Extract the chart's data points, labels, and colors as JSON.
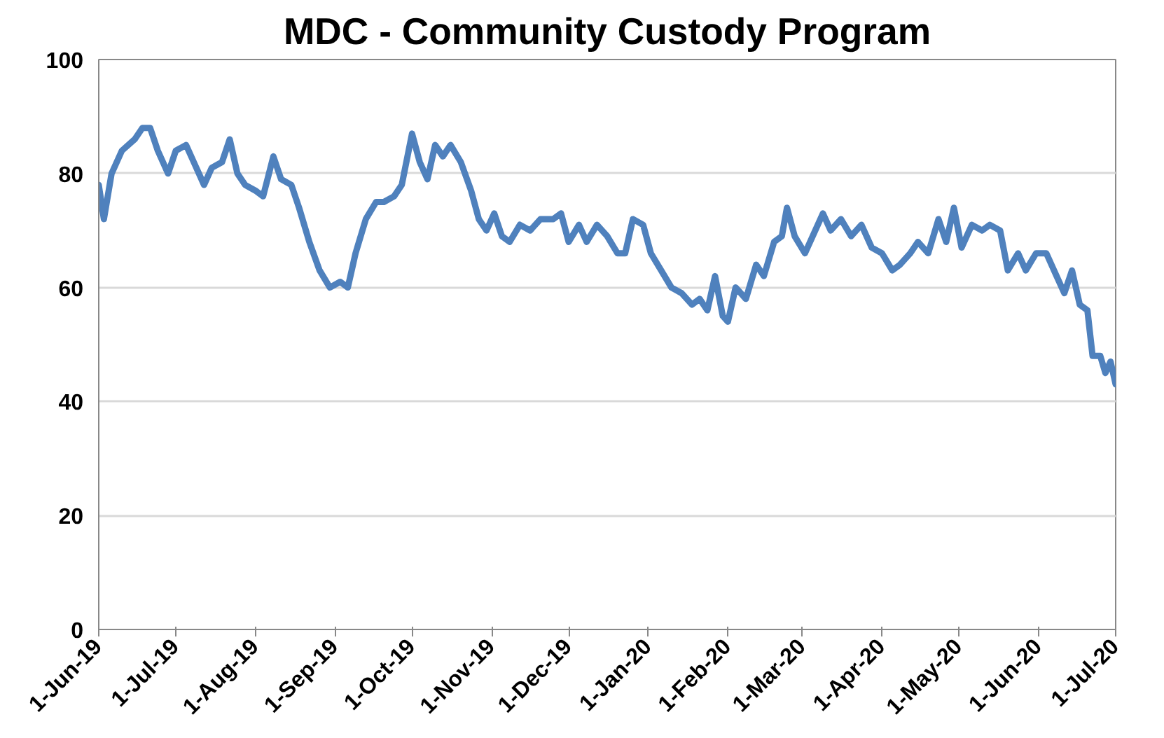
{
  "chart_data": {
    "type": "line",
    "title": "MDC - Community Custody Program",
    "x": [
      "2019-06-01",
      "2019-06-03",
      "2019-06-06",
      "2019-06-10",
      "2019-06-15",
      "2019-06-18",
      "2019-06-21",
      "2019-06-24",
      "2019-06-28",
      "2019-07-01",
      "2019-07-05",
      "2019-07-08",
      "2019-07-12",
      "2019-07-15",
      "2019-07-19",
      "2019-07-22",
      "2019-07-25",
      "2019-07-28",
      "2019-08-01",
      "2019-08-04",
      "2019-08-08",
      "2019-08-11",
      "2019-08-15",
      "2019-08-18",
      "2019-08-22",
      "2019-08-26",
      "2019-08-30",
      "2019-09-03",
      "2019-09-06",
      "2019-09-09",
      "2019-09-13",
      "2019-09-17",
      "2019-09-20",
      "2019-09-24",
      "2019-09-27",
      "2019-10-01",
      "2019-10-04",
      "2019-10-07",
      "2019-10-10",
      "2019-10-13",
      "2019-10-16",
      "2019-10-20",
      "2019-10-24",
      "2019-10-27",
      "2019-10-30",
      "2019-11-02",
      "2019-11-05",
      "2019-11-08",
      "2019-11-12",
      "2019-11-16",
      "2019-11-20",
      "2019-11-25",
      "2019-11-28",
      "2019-12-01",
      "2019-12-05",
      "2019-12-08",
      "2019-12-12",
      "2019-12-16",
      "2019-12-20",
      "2019-12-23",
      "2019-12-26",
      "2019-12-30",
      "2020-01-02",
      "2020-01-06",
      "2020-01-10",
      "2020-01-14",
      "2020-01-18",
      "2020-01-21",
      "2020-01-24",
      "2020-01-27",
      "2020-01-30",
      "2020-02-01",
      "2020-02-04",
      "2020-02-08",
      "2020-02-12",
      "2020-02-15",
      "2020-02-19",
      "2020-02-22",
      "2020-02-24",
      "2020-02-27",
      "2020-03-02",
      "2020-03-05",
      "2020-03-09",
      "2020-03-12",
      "2020-03-16",
      "2020-03-20",
      "2020-03-24",
      "2020-03-28",
      "2020-04-01",
      "2020-04-05",
      "2020-04-08",
      "2020-04-12",
      "2020-04-15",
      "2020-04-19",
      "2020-04-23",
      "2020-04-26",
      "2020-04-29",
      "2020-05-02",
      "2020-05-06",
      "2020-05-10",
      "2020-05-13",
      "2020-05-17",
      "2020-05-20",
      "2020-05-24",
      "2020-05-27",
      "2020-05-31",
      "2020-06-04",
      "2020-06-08",
      "2020-06-11",
      "2020-06-14",
      "2020-06-17",
      "2020-06-20",
      "2020-06-22",
      "2020-06-25",
      "2020-06-27",
      "2020-06-29",
      "2020-07-01"
    ],
    "series": [
      {
        "color": "#4f81bd",
        "values": [
          78,
          72,
          80,
          84,
          86,
          88,
          88,
          84,
          80,
          84,
          85,
          82,
          78,
          81,
          82,
          86,
          80,
          78,
          77,
          76,
          83,
          79,
          78,
          74,
          68,
          63,
          60,
          61,
          60,
          66,
          72,
          75,
          75,
          76,
          78,
          87,
          82,
          79,
          85,
          83,
          85,
          82,
          77,
          72,
          70,
          73,
          69,
          68,
          71,
          70,
          72,
          72,
          73,
          68,
          71,
          68,
          71,
          69,
          66,
          66,
          72,
          71,
          66,
          63,
          60,
          59,
          57,
          58,
          56,
          62,
          55,
          54,
          60,
          58,
          64,
          62,
          68,
          69,
          74,
          69,
          66,
          69,
          73,
          70,
          72,
          69,
          71,
          67,
          66,
          63,
          64,
          66,
          68,
          66,
          72,
          68,
          74,
          67,
          71,
          70,
          71,
          70,
          63,
          66,
          63,
          66,
          66,
          62,
          59,
          63,
          57,
          56,
          48,
          48,
          45,
          47,
          43
        ]
      }
    ],
    "xlim": [
      "2019-06-01",
      "2020-07-01"
    ],
    "xticks": [
      {
        "value": "2019-06-01",
        "label": "1-Jun-19"
      },
      {
        "value": "2019-07-01",
        "label": "1-Jul-19"
      },
      {
        "value": "2019-08-01",
        "label": "1-Aug-19"
      },
      {
        "value": "2019-09-01",
        "label": "1-Sep-19"
      },
      {
        "value": "2019-10-01",
        "label": "1-Oct-19"
      },
      {
        "value": "2019-11-01",
        "label": "1-Nov-19"
      },
      {
        "value": "2019-12-01",
        "label": "1-Dec-19"
      },
      {
        "value": "2020-01-01",
        "label": "1-Jan-20"
      },
      {
        "value": "2020-02-01",
        "label": "1-Feb-20"
      },
      {
        "value": "2020-03-01",
        "label": "1-Mar-20"
      },
      {
        "value": "2020-04-01",
        "label": "1-Apr-20"
      },
      {
        "value": "2020-05-01",
        "label": "1-May-20"
      },
      {
        "value": "2020-06-01",
        "label": "1-Jun-20"
      },
      {
        "value": "2020-07-01",
        "label": "1-Jul-20"
      }
    ],
    "ylim": [
      0,
      100
    ],
    "yticks": [
      0,
      20,
      40,
      60,
      80,
      100
    ],
    "grid": "y",
    "marker": "none",
    "line_style": "solid"
  }
}
